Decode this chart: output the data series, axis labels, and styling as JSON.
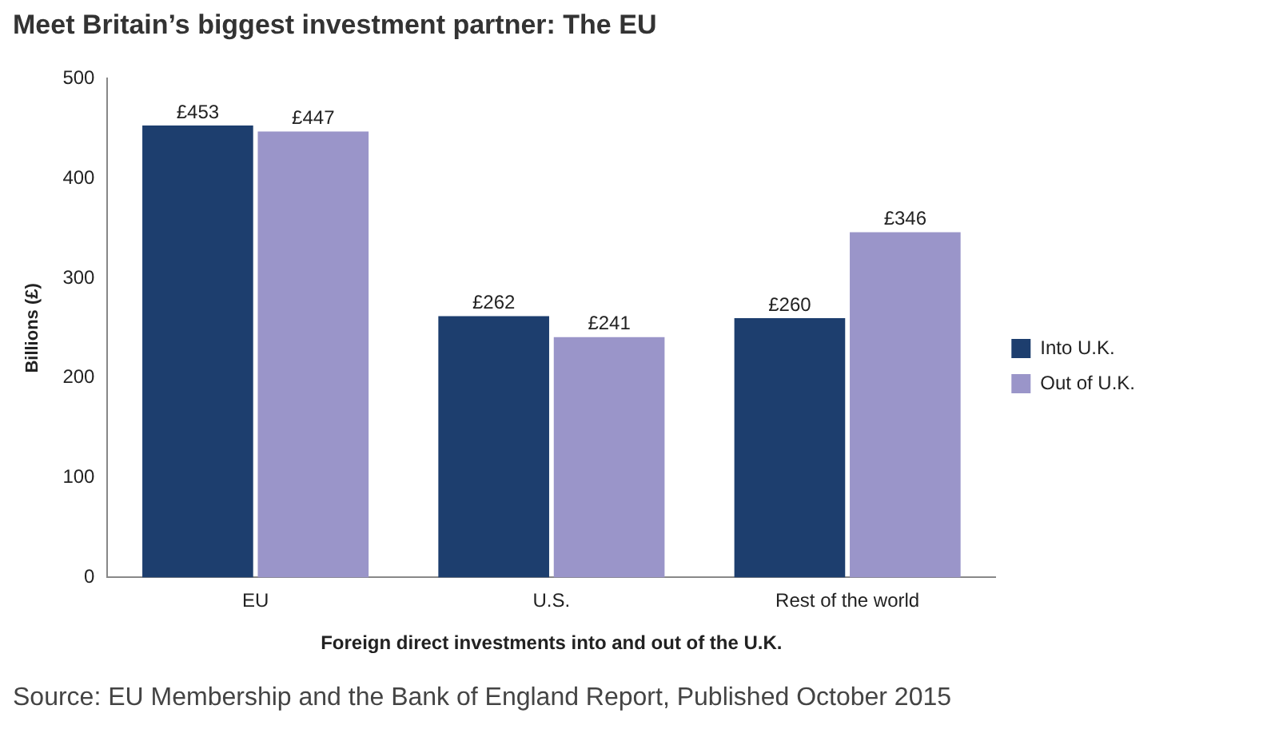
{
  "chart_data": {
    "type": "bar",
    "title": "Meet Britain’s biggest investment partner: The EU",
    "xlabel": "Foreign direct investments into and out of the U.K.",
    "ylabel": "Billions (£)",
    "categories": [
      "EU",
      "U.S.",
      "Rest of the world"
    ],
    "series": [
      {
        "name": "Into U.K.",
        "color": "#1d3e6e",
        "values": [
          453,
          262,
          260
        ],
        "value_labels": [
          "£453",
          "£262",
          "£260"
        ]
      },
      {
        "name": "Out of U.K.",
        "color": "#9a95c9",
        "values": [
          447,
          241,
          346
        ],
        "value_labels": [
          "£447",
          "£241",
          "£346"
        ]
      }
    ],
    "ylim": [
      0,
      500
    ],
    "yticks": [
      0,
      100,
      200,
      300,
      400,
      500
    ],
    "grid": false,
    "legend": "right",
    "annotations": [
      "Source: EU Membership and the Bank of England Report, Published October 2015"
    ]
  }
}
